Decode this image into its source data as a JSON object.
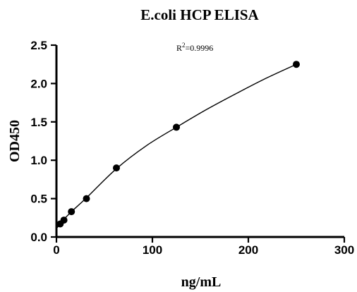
{
  "chart_data": {
    "type": "scatter",
    "title": "E.coli HCP ELISA",
    "xlabel": "ng/mL",
    "ylabel": "OD450",
    "xlim": [
      0,
      300
    ],
    "ylim": [
      0,
      2.5
    ],
    "x_ticks": [
      "0",
      "100",
      "200",
      "300"
    ],
    "y_ticks": [
      "0.0",
      "0.5",
      "1.0",
      "1.5",
      "2.0",
      "2.5"
    ],
    "grid": false,
    "legend": "none",
    "annotation": {
      "prefix": "R",
      "superscript": "2",
      "suffix": "=0.9996"
    },
    "points": [
      {
        "x": 3.9,
        "y": 0.17
      },
      {
        "x": 7.8,
        "y": 0.22
      },
      {
        "x": 15.6,
        "y": 0.33
      },
      {
        "x": 31.25,
        "y": 0.5
      },
      {
        "x": 62.5,
        "y": 0.9
      },
      {
        "x": 125,
        "y": 1.43
      },
      {
        "x": 250,
        "y": 2.25
      }
    ],
    "fit_curve": {
      "kind": "smooth fit through points",
      "x": [
        0,
        3.9,
        7.8,
        15.6,
        31.25,
        62.5,
        93.75,
        125,
        156.25,
        187.5,
        218.75,
        250
      ],
      "y": [
        0.11,
        0.17,
        0.23,
        0.33,
        0.51,
        0.89,
        1.19,
        1.43,
        1.66,
        1.87,
        2.07,
        2.25
      ]
    },
    "colors": {
      "marker": "#000000",
      "line": "#000000",
      "axis": "#000000"
    }
  }
}
